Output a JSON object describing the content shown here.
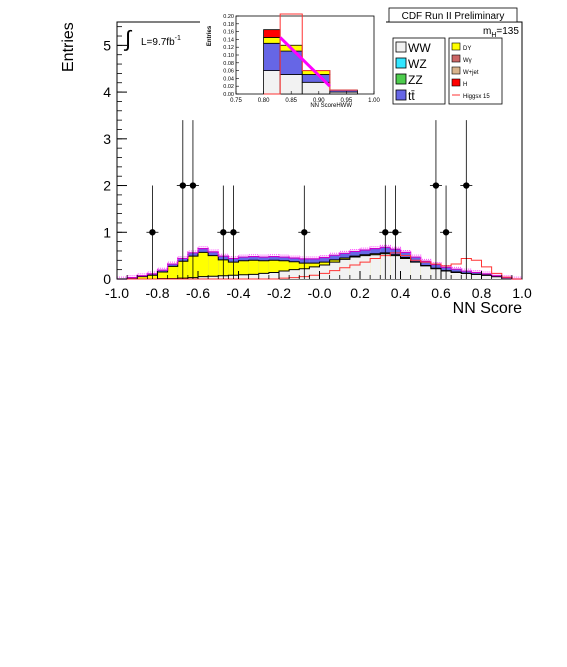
{
  "chart_data": {
    "type": "histogram",
    "title": "CDF Run II Preliminary",
    "xlabel": "NN Score",
    "ylabel": "Entries",
    "xlim": [
      -1.0,
      1.0
    ],
    "ylim": [
      0,
      5.5
    ],
    "x_ticks": [
      "-1.0",
      "-0.8",
      "-0.6",
      "-0.4",
      "-0.2",
      "-0.0",
      "0.2",
      "0.4",
      "0.6",
      "0.8",
      "1.0"
    ],
    "y_ticks": [
      "0",
      "1",
      "2",
      "3",
      "4",
      "5"
    ],
    "luminosity": "L=9.7fb",
    "luminosity_exp": "-1",
    "mass_label": "m",
    "mass_sub": "H",
    "mass_value": "=135",
    "legend": [
      {
        "label": "WW",
        "color": "#f2f2f2"
      },
      {
        "label": "WZ",
        "color": "#33e6ff"
      },
      {
        "label": "ZZ",
        "color": "#4dcc4d"
      },
      {
        "label": "tt̄",
        "color": "#6666e6"
      },
      {
        "label": "DY",
        "color": "#ffff00"
      },
      {
        "label": "Wγ",
        "color": "#cc6666"
      },
      {
        "label": "W+jet",
        "color": "#d9b38c"
      },
      {
        "label": "H",
        "color": "#ff0000"
      },
      {
        "label": "Higgsx 15",
        "color": "#ff3333"
      }
    ],
    "bin_edges": [
      -1.0,
      -0.95,
      -0.9,
      -0.85,
      -0.8,
      -0.75,
      -0.7,
      -0.65,
      -0.6,
      -0.55,
      -0.5,
      -0.45,
      -0.4,
      -0.35,
      -0.3,
      -0.25,
      -0.2,
      -0.15,
      -0.1,
      -0.05,
      0.0,
      0.05,
      0.1,
      0.15,
      0.2,
      0.25,
      0.3,
      0.35,
      0.4,
      0.45,
      0.5,
      0.55,
      0.6,
      0.65,
      0.7,
      0.75,
      0.8,
      0.85,
      0.9,
      0.95,
      1.0
    ],
    "stack": [
      {
        "name": "WW",
        "values": [
          0.0,
          0.0,
          0.0,
          0.0,
          0.01,
          0.01,
          0.02,
          0.03,
          0.05,
          0.06,
          0.07,
          0.08,
          0.09,
          0.1,
          0.12,
          0.14,
          0.17,
          0.2,
          0.22,
          0.26,
          0.3,
          0.36,
          0.42,
          0.47,
          0.5,
          0.52,
          0.54,
          0.5,
          0.44,
          0.36,
          0.28,
          0.22,
          0.17,
          0.14,
          0.12,
          0.1,
          0.08,
          0.05,
          0.02,
          0.0
        ]
      },
      {
        "name": "DY",
        "values": [
          0.0,
          0.02,
          0.05,
          0.08,
          0.14,
          0.26,
          0.36,
          0.46,
          0.52,
          0.44,
          0.34,
          0.28,
          0.3,
          0.3,
          0.27,
          0.26,
          0.22,
          0.17,
          0.12,
          0.08,
          0.06,
          0.05,
          0.03,
          0.02,
          0.02,
          0.02,
          0.02,
          0.02,
          0.02,
          0.01,
          0.01,
          0.01,
          0.01,
          0.01,
          0.0,
          0.0,
          0.0,
          0.0,
          0.0,
          0.0
        ]
      },
      {
        "name": "other",
        "values": [
          0.0,
          0.01,
          0.02,
          0.03,
          0.04,
          0.05,
          0.06,
          0.07,
          0.08,
          0.08,
          0.08,
          0.08,
          0.08,
          0.08,
          0.08,
          0.08,
          0.08,
          0.08,
          0.09,
          0.09,
          0.1,
          0.1,
          0.1,
          0.1,
          0.1,
          0.11,
          0.12,
          0.12,
          0.11,
          0.1,
          0.09,
          0.08,
          0.07,
          0.06,
          0.05,
          0.04,
          0.03,
          0.02,
          0.01,
          0.0
        ]
      }
    ],
    "signal_x15": [
      0.0,
      0.0,
      0.0,
      0.0,
      0.0,
      0.0,
      0.0,
      0.0,
      0.0,
      0.0,
      0.0,
      0.0,
      0.0,
      0.0,
      0.0,
      0.0,
      0.02,
      0.03,
      0.05,
      0.08,
      0.12,
      0.18,
      0.24,
      0.3,
      0.36,
      0.44,
      0.5,
      0.56,
      0.5,
      0.4,
      0.36,
      0.32,
      0.28,
      0.32,
      0.44,
      0.4,
      0.26,
      0.12,
      0.04,
      0.0
    ],
    "data_points": [
      {
        "x": -0.825,
        "y": 1
      },
      {
        "x": -0.675,
        "y": 2
      },
      {
        "x": -0.625,
        "y": 2
      },
      {
        "x": -0.475,
        "y": 1
      },
      {
        "x": -0.425,
        "y": 1
      },
      {
        "x": -0.075,
        "y": 1
      },
      {
        "x": 0.325,
        "y": 1
      },
      {
        "x": 0.375,
        "y": 1
      },
      {
        "x": 0.575,
        "y": 2
      },
      {
        "x": 0.625,
        "y": 1
      },
      {
        "x": 0.725,
        "y": 2
      }
    ],
    "inset": {
      "xlabel": "NN ScoreHWW",
      "ylabel": "Entries",
      "xlim": [
        0.75,
        1.0
      ],
      "ylim": [
        0,
        0.2
      ],
      "x_ticks": [
        "0.75",
        "0.80",
        "0.85",
        "0.90",
        "0.95",
        "1.00"
      ],
      "y_ticks": [
        "0.00",
        "0.02",
        "0.04",
        "0.06",
        "0.08",
        "0.10",
        "0.12",
        "0.14",
        "0.16",
        "0.18",
        "0.20"
      ],
      "bin_edges": [
        0.8,
        0.83,
        0.87,
        0.92,
        0.97
      ],
      "stack": [
        {
          "name": "WW",
          "values": [
            0.06,
            0.05,
            0.03,
            0.005
          ]
        },
        {
          "name": "tt̄",
          "values": [
            0.07,
            0.06,
            0.02,
            0.005
          ]
        },
        {
          "name": "DY",
          "values": [
            0.015,
            0.015,
            0.01,
            0.0
          ]
        },
        {
          "name": "H",
          "values": [
            0.02,
            0.0,
            0.0,
            0.0
          ]
        }
      ],
      "signal_x15": [
        0.0,
        0.205,
        0.06,
        0.01
      ],
      "fit_line": [
        {
          "x": 0.83,
          "y": 0.145
        },
        {
          "x": 0.92,
          "y": 0.02
        }
      ]
    }
  }
}
